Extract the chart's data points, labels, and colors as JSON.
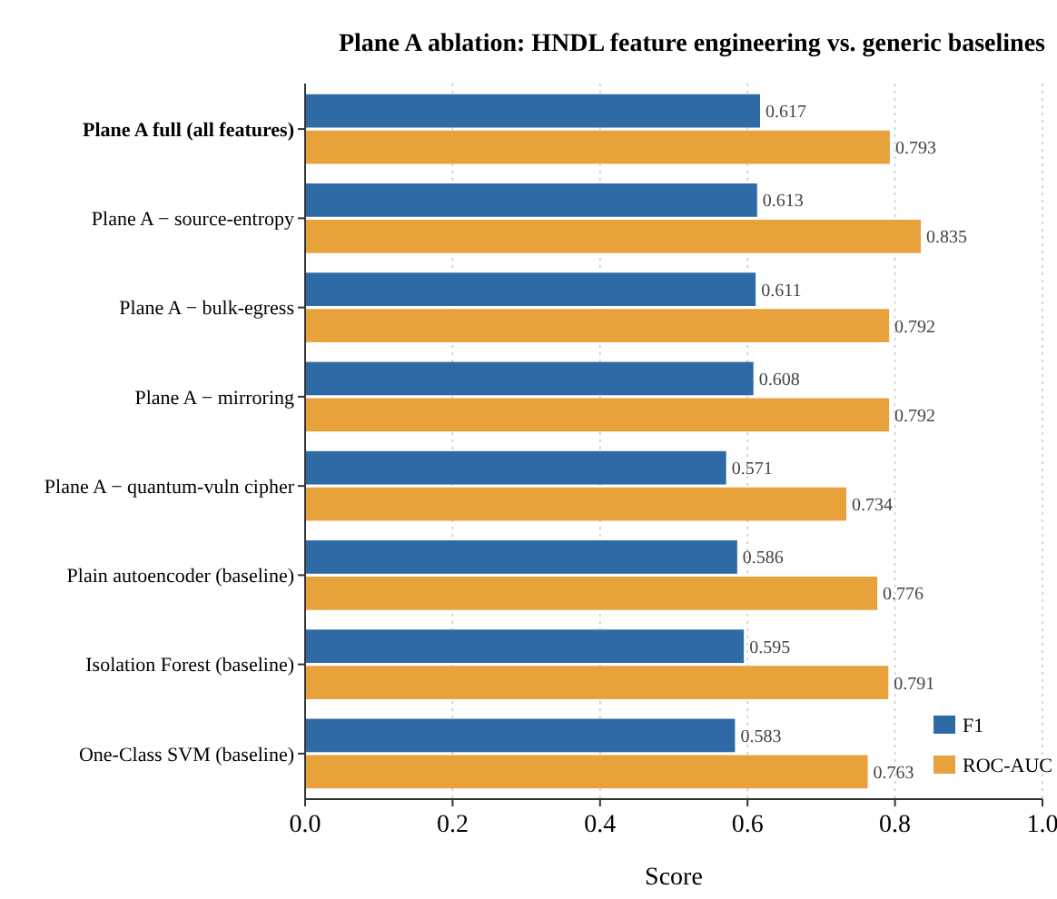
{
  "chart_data": {
    "type": "bar",
    "orientation": "horizontal",
    "title": "Plane A ablation: HNDL feature engineering vs. generic baselines",
    "xlabel": "Score",
    "categories": [
      "Plane A full (all features)",
      "Plane A − source-entropy",
      "Plane A − bulk-egress",
      "Plane A − mirroring",
      "Plane A − quantum-vuln cipher",
      "Plain autoencoder (baseline)",
      "Isolation Forest (baseline)",
      "One-Class SVM (baseline)"
    ],
    "series": [
      {
        "name": "F1",
        "color": "#2e6aa6",
        "values": [
          0.617,
          0.613,
          0.611,
          0.608,
          0.571,
          0.586,
          0.595,
          0.583
        ]
      },
      {
        "name": "ROC-AUC",
        "color": "#e8a23c",
        "values": [
          0.793,
          0.835,
          0.792,
          0.792,
          0.734,
          0.776,
          0.791,
          0.763
        ]
      }
    ],
    "xlim": [
      0,
      1.0
    ],
    "xticks": [
      {
        "value": 0,
        "label": "0.0"
      },
      {
        "value": 0.2,
        "label": "0.2"
      },
      {
        "value": 0.4,
        "label": "0.4"
      },
      {
        "value": 0.6,
        "label": "0.6"
      },
      {
        "value": 0.8,
        "label": "0.8"
      },
      {
        "value": 1.0,
        "label": "1.0"
      }
    ],
    "grid": "x",
    "legend": "bottom right",
    "data_labels": true
  }
}
